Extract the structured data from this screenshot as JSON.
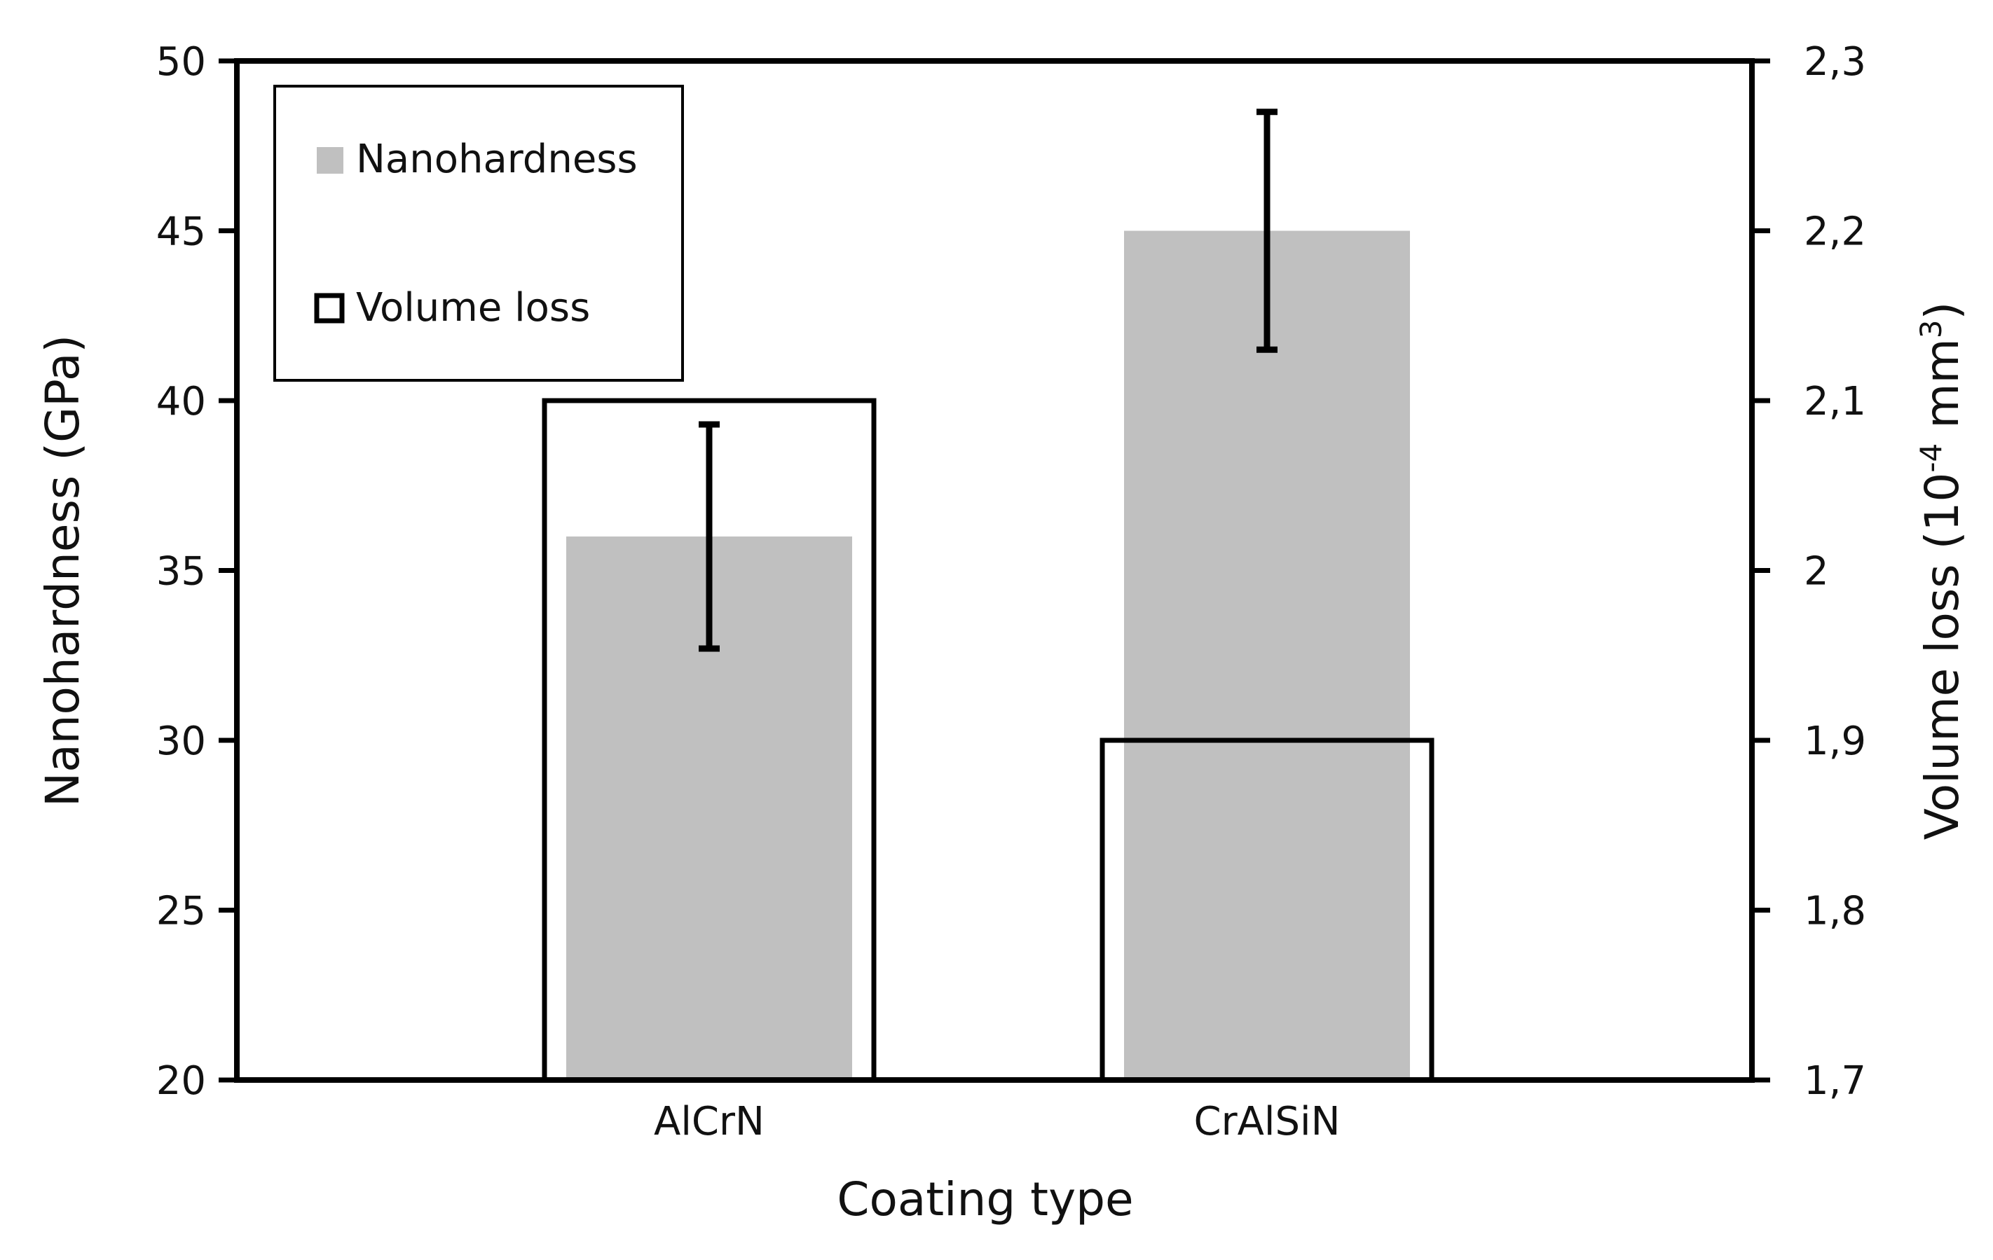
{
  "chart_data": {
    "type": "bar",
    "title": "",
    "xlabel": "Coating type",
    "categories": [
      "AlCrN",
      "CrAlSiN"
    ],
    "y_left": {
      "label": "Nanohardness (GPa)",
      "ylim": [
        20,
        50
      ],
      "ticks": [
        20,
        25,
        30,
        35,
        40,
        45,
        50
      ],
      "tick_labels": [
        "20",
        "25",
        "30",
        "35",
        "40",
        "45",
        "50"
      ]
    },
    "y_right": {
      "label_main": "Volume loss (10",
      "label_exp1": "-4",
      "label_mid": " mm",
      "label_exp2": "3",
      "label_end": ")",
      "ylim": [
        1.7,
        2.3
      ],
      "ticks": [
        1.7,
        1.8,
        1.9,
        2.0,
        2.1,
        2.2,
        2.3
      ],
      "tick_labels": [
        "1,7",
        "1,8",
        "1,9",
        "2",
        "2,1",
        "2,2",
        "2,3"
      ]
    },
    "series": [
      {
        "name": "Nanohardness",
        "axis": "left",
        "style": "filled",
        "color": "#c0c0c0",
        "values": [
          36,
          45
        ],
        "error": [
          3.3,
          3.5
        ]
      },
      {
        "name": "Volume loss",
        "axis": "right",
        "style": "outline",
        "color": "#000000",
        "values": [
          2.1,
          1.9
        ]
      }
    ],
    "legend_position": "top-left",
    "grid": false
  }
}
